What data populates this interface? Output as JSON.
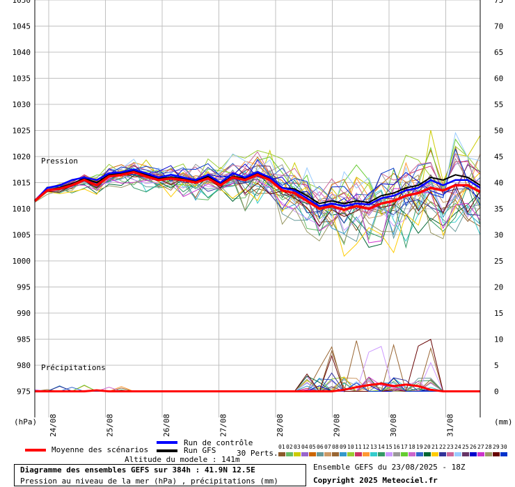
{
  "chart_data": {
    "type": "line",
    "left_axis_label": "(hPa)",
    "right_axis_label": "(mm)",
    "left_ticks": [
      1050,
      1045,
      1040,
      1035,
      1030,
      1025,
      1020,
      1015,
      1010,
      1005,
      1000,
      995,
      990,
      985,
      980,
      975
    ],
    "right_ticks": [
      75,
      70,
      65,
      60,
      55,
      50,
      45,
      40,
      35,
      30,
      25,
      20,
      15,
      10,
      5,
      0
    ],
    "ylim_pressure": [
      970,
      1050
    ],
    "ylim_precip": [
      -5,
      75
    ],
    "x_labels": [
      "24/08",
      "25/08",
      "26/08",
      "27/08",
      "28/08",
      "29/08",
      "30/08",
      "31/08"
    ],
    "pressure_label": "Pression",
    "precip_label": "Précipitations",
    "grid": true,
    "mean_pressure": [
      1011.5,
      1013.5,
      1013.8,
      1014.5,
      1015.5,
      1014.5,
      1016.2,
      1016.5,
      1017,
      1016.2,
      1015.5,
      1015.8,
      1015.5,
      1015,
      1015.8,
      1014.5,
      1016,
      1015.5,
      1016.5,
      1015.5,
      1013.5,
      1013,
      1011.5,
      1010,
      1010.5,
      1009.8,
      1010.5,
      1010,
      1011,
      1011.5,
      1012.5,
      1013,
      1014,
      1013.5,
      1014.5,
      1014.5,
      1013.2
    ],
    "control_pressure": [
      1011.5,
      1014,
      1014.5,
      1015.5,
      1016,
      1015.5,
      1016.8,
      1017,
      1017.5,
      1016.8,
      1016,
      1016.5,
      1016,
      1015.5,
      1016.5,
      1015,
      1016.8,
      1016,
      1017,
      1016,
      1014,
      1013.5,
      1012,
      1010.5,
      1011,
      1010.5,
      1011,
      1010.8,
      1012,
      1012.5,
      1013.5,
      1014,
      1015.5,
      1014.5,
      1015.5,
      1015.5,
      1014
    ],
    "gfs_pressure": [
      1011.5,
      1013.5,
      1014,
      1014.8,
      1015.8,
      1015,
      1016.5,
      1016.8,
      1017.2,
      1016.5,
      1015.8,
      1016,
      1015.8,
      1015.2,
      1016.2,
      1014.8,
      1016.2,
      1015.8,
      1016.8,
      1015.8,
      1014,
      1013.8,
      1012.5,
      1011,
      1011.5,
      1011,
      1011.5,
      1011.2,
      1012.5,
      1013,
      1014,
      1014.5,
      1016,
      1015.5,
      1016.5,
      1016,
      1014.5
    ],
    "mean_precip": [
      0,
      0,
      0,
      0,
      0,
      0.2,
      0,
      0,
      0,
      0,
      0,
      0,
      0,
      0,
      0,
      0,
      0,
      0,
      0,
      0,
      0,
      0,
      0,
      0,
      0,
      0.3,
      0.8,
      1.2,
      1.5,
      1.0,
      1.3,
      1.0,
      0.3,
      0,
      0,
      0,
      0
    ],
    "legend": {
      "mean": "Moyenne des scénarios",
      "control": "Run de contrôle",
      "gfs": "Run GFS",
      "perts": "30 Perts."
    },
    "pert_colors": [
      "#8b5a2b",
      "#66bb66",
      "#cccc00",
      "#9966cc",
      "#cc6600",
      "#669999",
      "#cc9966",
      "#996633",
      "#3399cc",
      "#99cc33",
      "#cc3366",
      "#ff9933",
      "#33cccc",
      "#339966",
      "#cc99ff",
      "#999999",
      "#66cc33",
      "#cc66cc",
      "#3366cc",
      "#006633",
      "#ffcc00",
      "#333399",
      "#cc6699",
      "#99ccff",
      "#663366",
      "#0000cc",
      "#cc33cc",
      "#999966",
      "#660000",
      "#0033cc"
    ],
    "colors": {
      "mean": "#ff0000",
      "control": "#0000ff",
      "gfs": "#000000",
      "grid": "#c0c0c0"
    }
  },
  "pert_numbers": [
    "01",
    "02",
    "03",
    "04",
    "05",
    "06",
    "07",
    "08",
    "09",
    "10",
    "11",
    "12",
    "13",
    "14",
    "15",
    "16",
    "17",
    "18",
    "19",
    "20",
    "21",
    "22",
    "23",
    "24",
    "25",
    "26",
    "27",
    "28",
    "29",
    "30"
  ],
  "altitude": "Altitude du modele : 141m",
  "info_title": "Diagramme des ensembles GEFS sur 384h : 41.9N 12.5E",
  "info_subtitle": "Pression au niveau de la mer (hPa) , précipitations (mm)",
  "run_info": "Ensemble GEFS du 23/08/2025 - 18Z",
  "copyright": "Copyright 2025 Meteociel.fr"
}
